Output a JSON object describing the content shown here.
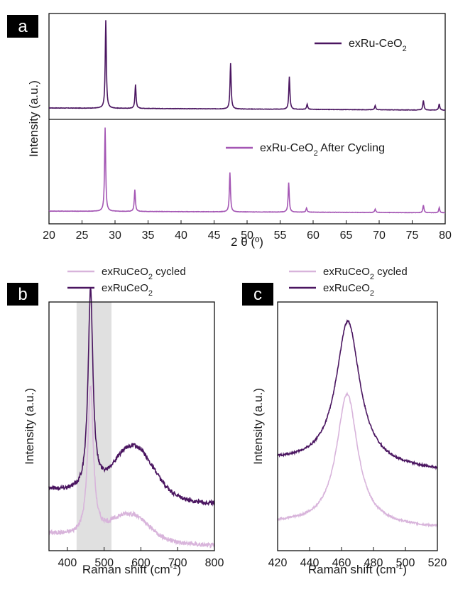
{
  "colors": {
    "dark": "#4a1560",
    "light": "#a456b4",
    "pale": "#d8b4db",
    "band": "#e0e0e0"
  },
  "chart_data": [
    {
      "panel": "a",
      "type": "line",
      "xlabel": "2 θ (º)",
      "ylabel": "Intensity (a.u.)",
      "xlim": [
        20,
        80
      ],
      "xticks": [
        20,
        25,
        30,
        35,
        40,
        45,
        50,
        55,
        60,
        65,
        70,
        75,
        80
      ],
      "series": [
        {
          "name": "exRu-CeO",
          "name_sub": "2",
          "name_suffix": "",
          "color_key": "dark",
          "baseline": 0.04,
          "slope": 0.025,
          "peaks": [
            {
              "x": 28.6,
              "h": 1.0
            },
            {
              "x": 33.1,
              "h": 0.27
            },
            {
              "x": 47.5,
              "h": 0.52
            },
            {
              "x": 56.4,
              "h": 0.37
            },
            {
              "x": 59.1,
              "h": 0.06
            },
            {
              "x": 69.4,
              "h": 0.05
            },
            {
              "x": 76.7,
              "h": 0.11
            },
            {
              "x": 79.1,
              "h": 0.07
            }
          ]
        },
        {
          "name": "exRu-CeO",
          "name_sub": "2",
          "name_suffix": " After Cycling",
          "color_key": "light",
          "baseline": 0.03,
          "slope": 0.02,
          "peaks": [
            {
              "x": 28.5,
              "h": 1.0
            },
            {
              "x": 33.0,
              "h": 0.26
            },
            {
              "x": 47.4,
              "h": 0.47
            },
            {
              "x": 56.3,
              "h": 0.35
            },
            {
              "x": 59.0,
              "h": 0.05
            },
            {
              "x": 69.4,
              "h": 0.04
            },
            {
              "x": 76.7,
              "h": 0.09
            },
            {
              "x": 79.1,
              "h": 0.06
            }
          ]
        }
      ]
    },
    {
      "panel": "b",
      "type": "line",
      "xlabel": "Raman shift (cm",
      "xlabel_sup": "-1",
      "ylabel": "Intensity (a.u.)",
      "xlim": [
        350,
        800
      ],
      "xticks": [
        400,
        500,
        600,
        700,
        800
      ],
      "shaded_region": [
        425,
        520
      ],
      "series": [
        {
          "name": "exRuCeO",
          "name_sub": "2",
          "name_suffix": " cycled",
          "color_key": "pale",
          "peak_x": 463,
          "peak_h": 0.6,
          "width": 9,
          "broad": [
            {
              "x": 570,
              "h": 0.1,
              "w": 70
            }
          ],
          "start": 0.07,
          "end": 0.02
        },
        {
          "name": "exRuCeO",
          "name_sub": "2",
          "name_suffix": "",
          "color_key": "dark",
          "peak_x": 463,
          "peak_h": 0.8,
          "width": 8,
          "broad": [
            {
              "x": 580,
              "h": 0.2,
              "w": 75
            }
          ],
          "start": 0.25,
          "end": 0.19
        }
      ]
    },
    {
      "panel": "c",
      "type": "line",
      "xlabel": "Raman shift (cm",
      "xlabel_sup": "-1",
      "ylabel": "Intensity (a.u.)",
      "xlim": [
        420,
        520
      ],
      "xticks": [
        420,
        440,
        460,
        480,
        500,
        520
      ],
      "series": [
        {
          "name": "exRuCeO",
          "name_sub": "2",
          "name_suffix": " cycled",
          "color_key": "pale",
          "peak_x": 463.5,
          "peak_h": 0.53,
          "width": 8,
          "start": 0.11,
          "end": 0.09
        },
        {
          "name": "exRuCeO",
          "name_sub": "2",
          "name_suffix": "",
          "color_key": "dark",
          "peak_x": 464,
          "peak_h": 0.58,
          "width": 9,
          "start": 0.36,
          "end": 0.32
        }
      ]
    }
  ]
}
